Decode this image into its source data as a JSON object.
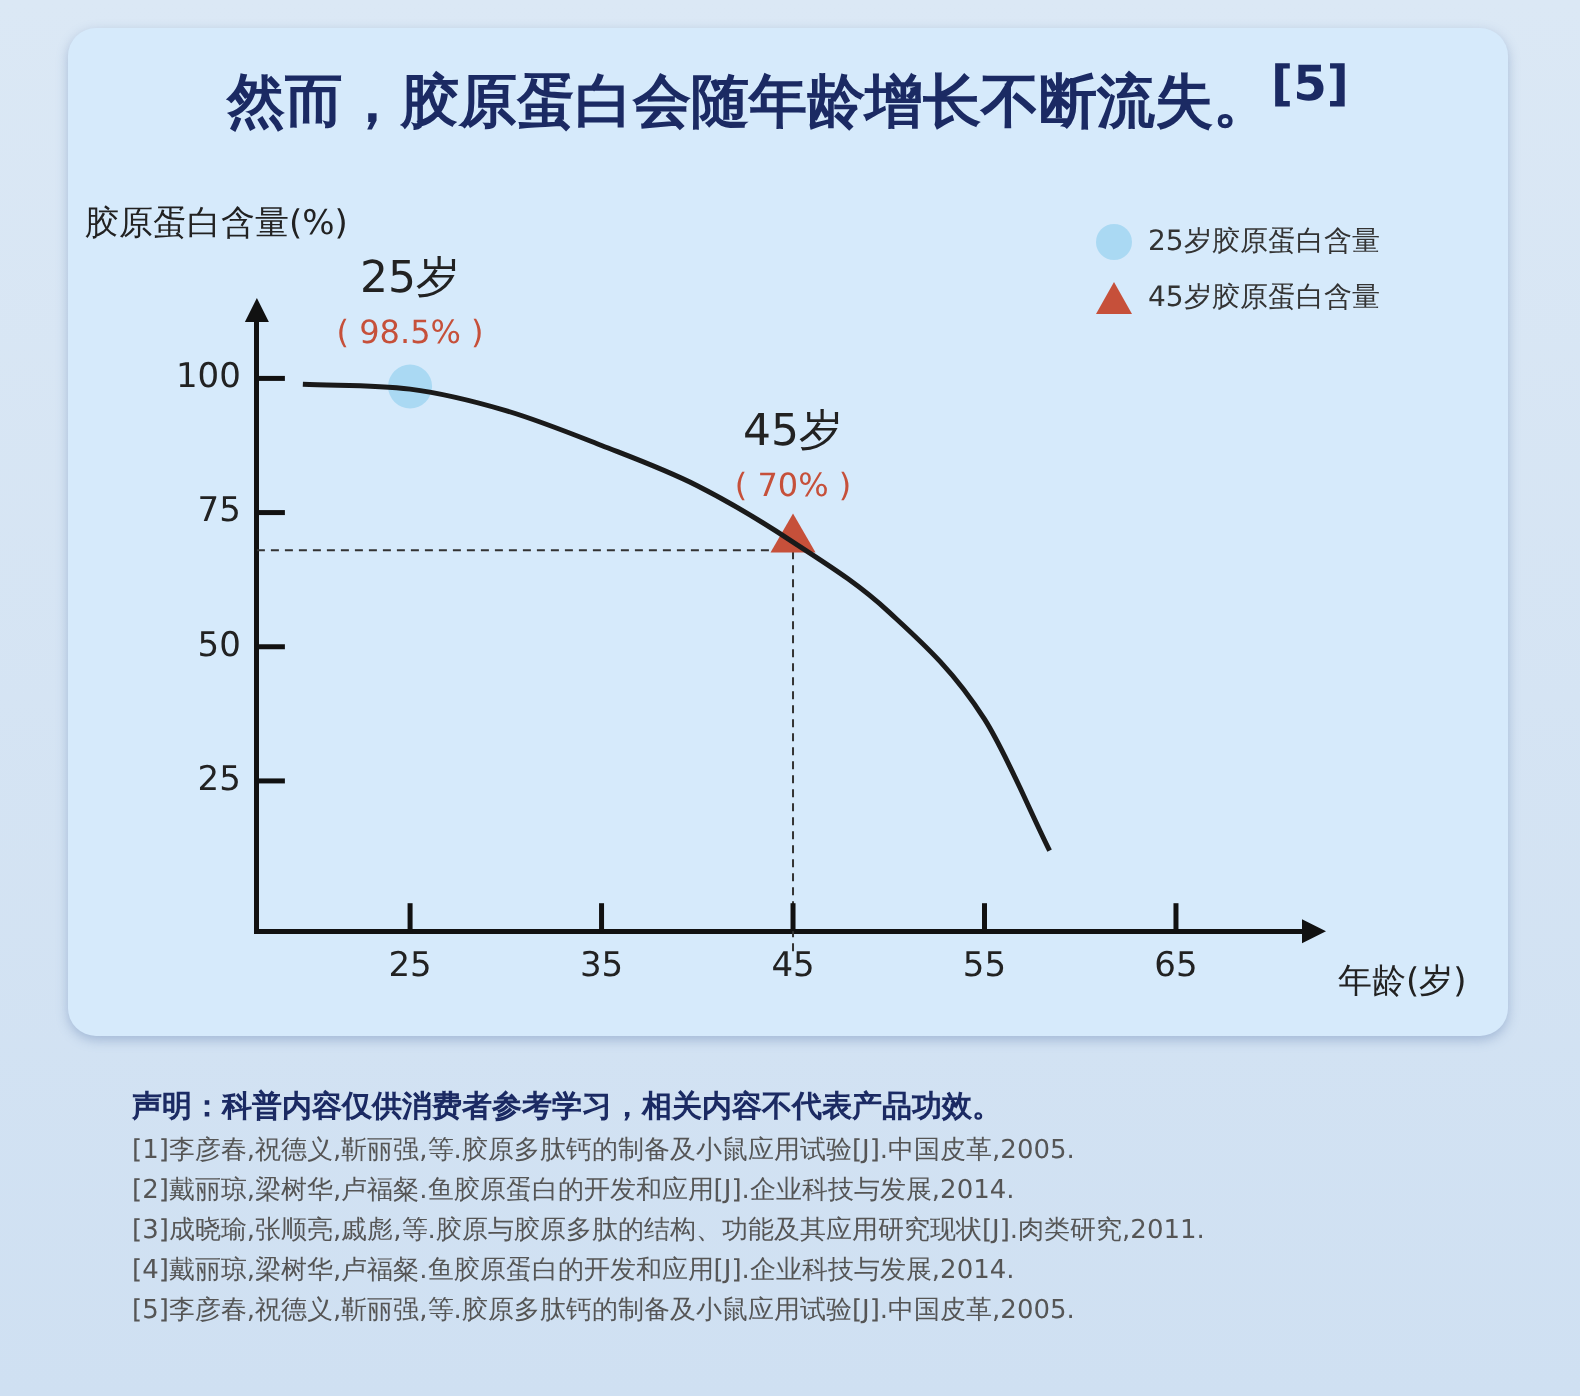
{
  "chart_data": {
    "type": "line",
    "title": "然而，胶原蛋白会随年龄增长不断流失。$^{[5]}$",
    "xlabel": "年龄(岁)",
    "ylabel": "胶原蛋白含量(%)",
    "xlim": [
      17,
      72
    ],
    "xticks": [
      25,
      35,
      45,
      55,
      65
    ],
    "ylim": [
      -3,
      112
    ],
    "yticks": [
      25,
      50,
      75,
      100
    ],
    "legend": "top right",
    "series": [
      {
        "color": "#1a1a1a",
        "marker": "none",
        "x": [
          19.4,
          25,
          30,
          35,
          40,
          45,
          50,
          55,
          58.4
        ],
        "values": [
          98.9,
          98,
          94,
          87.5,
          80,
          69.5,
          56.5,
          36.5,
          12
        ]
      },
      {
        "type": "scatter",
        "name": "25岁胶原蛋白含量",
        "color": "#aad9f3",
        "marker": "circle",
        "x": [
          25
        ],
        "values": [
          98.5
        ],
        "value_labels": [
          "( 98.5% )"
        ]
      },
      {
        "type": "scatter",
        "name": "45岁胶原蛋白含量",
        "color": "#c6503a",
        "marker": "triangle",
        "x": [
          45
        ],
        "values": [
          70
        ],
        "value_labels": [
          "( 70% )"
        ]
      }
    ],
    "ref_lines": [
      {
        "axis": "x",
        "value": 45,
        "line_style": "dashed",
        "color": "#333333"
      },
      {
        "axis": "y",
        "value": 68,
        "line_style": "dashed",
        "color": "#333333"
      }
    ],
    "annotations": [
      {
        "text": "25岁",
        "x": 25,
        "y": 98.5
      },
      {
        "text": "45岁",
        "x": 45,
        "y": 70
      },
      "声明：科普内容仅供消费者参考学习，相关内容不代表产品功效。",
      "[1]李彦春,祝德义,靳丽强,等.胶原多肽钙的制备及小鼠应用试验[J].中国皮革,2005.",
      "[2]戴丽琼,梁树华,卢福粲.鱼胶原蛋白的开发和应用[J].企业科技与发展,2014.",
      "[3]成晓瑜,张顺亮,戚彪,等.胶原与胶原多肽的结构、功能及其应用研究现状[J].肉类研究,2011.",
      "[4]戴丽琼,梁树华,卢福粲.鱼胶原蛋白的开发和应用[J].企业科技与发展,2014.",
      "[5]李彦春,祝德义,靳丽强,等.胶原多肽钙的制备及小鼠应用试验[J].中国皮革,2005."
    ]
  }
}
